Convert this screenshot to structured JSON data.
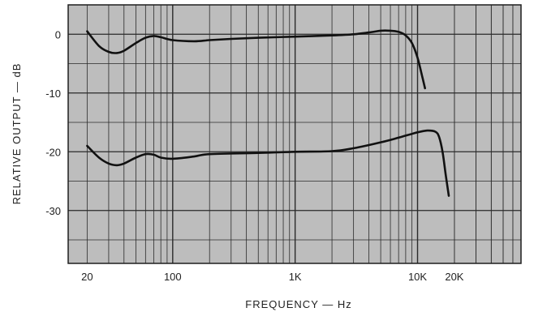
{
  "chart_data": {
    "type": "line",
    "xlabel": "FREQUENCY — Hz",
    "ylabel": "RELATIVE OUTPUT — dB",
    "x_scale": "log",
    "xlim": [
      14,
      70000
    ],
    "ylim": [
      -39,
      5
    ],
    "grid": true,
    "x_ticks": [
      {
        "value": 20,
        "label": "20"
      },
      {
        "value": 100,
        "label": "100"
      },
      {
        "value": 1000,
        "label": "1K"
      },
      {
        "value": 10000,
        "label": "10K"
      },
      {
        "value": 20000,
        "label": "20K"
      }
    ],
    "y_ticks": [
      {
        "value": 0,
        "label": "0"
      },
      {
        "value": -10,
        "label": "-10"
      },
      {
        "value": -20,
        "label": "-20"
      },
      {
        "value": -30,
        "label": "-30"
      }
    ],
    "series": [
      {
        "x": [
          20,
          25,
          30,
          35,
          40,
          50,
          60,
          70,
          80,
          100,
          150,
          200,
          300,
          500,
          1000,
          2000,
          3000,
          4000,
          5000,
          6000,
          7000,
          8000,
          9000,
          10000,
          11000,
          11500
        ],
        "y": [
          0.5,
          -2.0,
          -3.0,
          -3.2,
          -2.8,
          -1.5,
          -0.6,
          -0.3,
          -0.5,
          -1.0,
          -1.2,
          -1.0,
          -0.8,
          -0.6,
          -0.4,
          -0.2,
          0.0,
          0.3,
          0.6,
          0.6,
          0.4,
          -0.2,
          -1.5,
          -4.0,
          -7.5,
          -9.2
        ]
      },
      {
        "x": [
          20,
          25,
          30,
          35,
          40,
          50,
          60,
          70,
          80,
          100,
          150,
          200,
          500,
          1000,
          2000,
          3000,
          5000,
          7000,
          10000,
          12000,
          14000,
          15000,
          16000,
          17000,
          18000
        ],
        "y": [
          -19.0,
          -21.0,
          -22.0,
          -22.3,
          -22.0,
          -21.0,
          -20.4,
          -20.5,
          -21.0,
          -21.2,
          -20.8,
          -20.4,
          -20.2,
          -20.0,
          -19.9,
          -19.4,
          -18.4,
          -17.6,
          -16.7,
          -16.4,
          -16.6,
          -17.5,
          -20.0,
          -24.0,
          -27.5
        ]
      }
    ]
  }
}
